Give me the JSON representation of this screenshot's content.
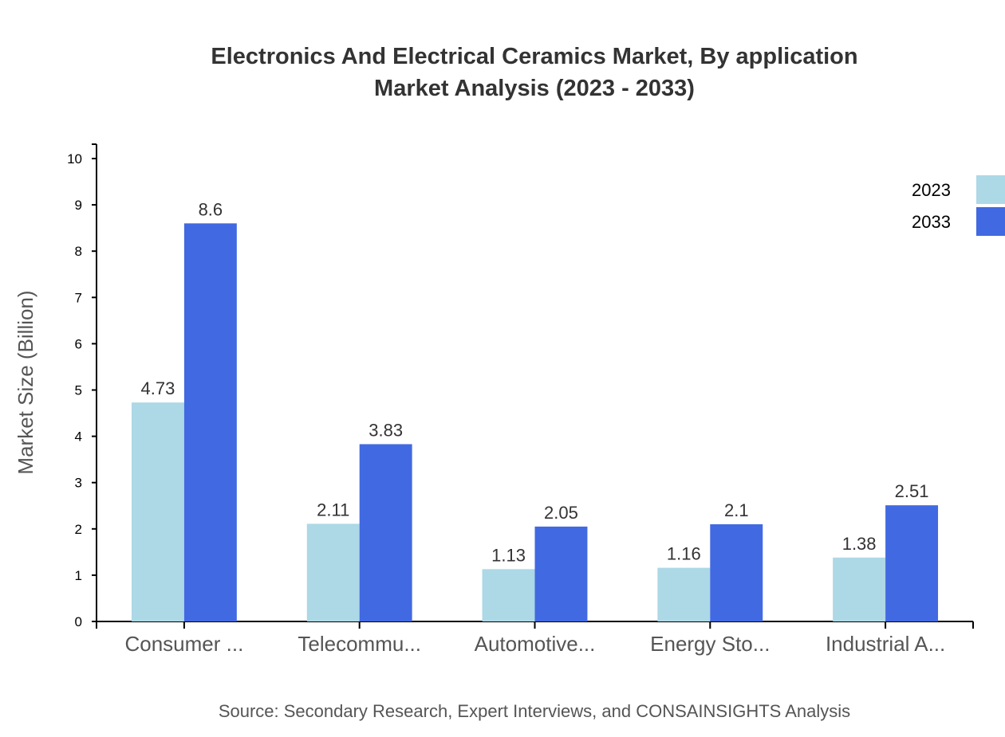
{
  "chart_data": {
    "type": "bar",
    "title": [
      "Electronics And Electrical Ceramics Market, By application",
      "Market Analysis (2023 - 2033)"
    ],
    "xlabel": "",
    "ylabel": "Market Size (Billion)",
    "ylim": [
      0,
      10
    ],
    "yticks": [
      0,
      1,
      2,
      3,
      4,
      5,
      6,
      7,
      8,
      9,
      10
    ],
    "categories": [
      "Consumer ...",
      "Telecommu...",
      "Automotive...",
      "Energy Sto...",
      "Industrial A..."
    ],
    "series": [
      {
        "name": "2023",
        "color": "#add8e6",
        "values": [
          4.73,
          2.11,
          1.13,
          1.16,
          1.38
        ]
      },
      {
        "name": "2033",
        "color": "#4169e1",
        "values": [
          8.6,
          3.83,
          2.05,
          2.1,
          2.51
        ]
      }
    ],
    "legend": "top-right",
    "grid": false,
    "source": "Source: Secondary Research, Expert Interviews, and CONSAINSIGHTS Analysis"
  }
}
